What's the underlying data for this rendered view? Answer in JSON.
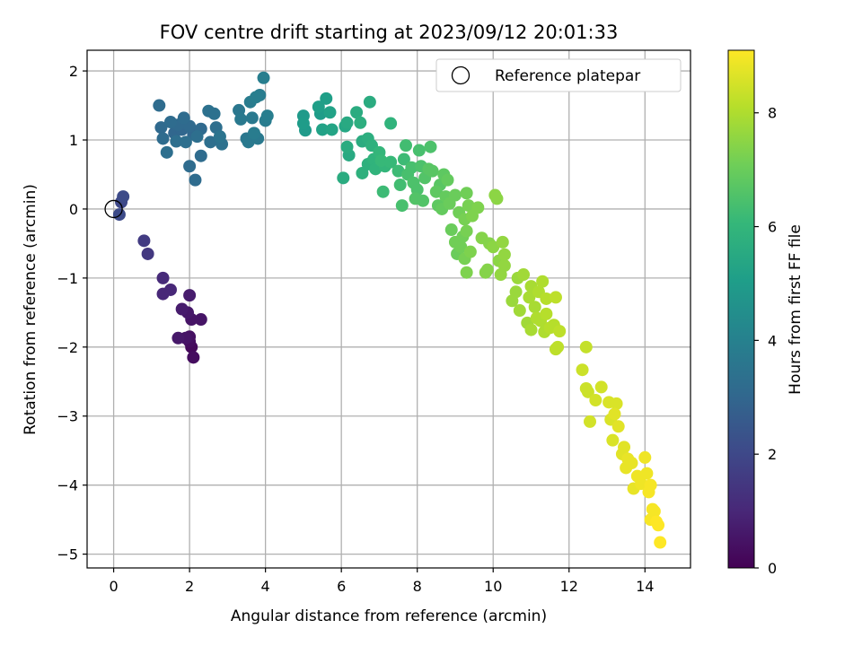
{
  "chart_data": {
    "type": "scatter",
    "title": "FOV centre drift starting at 2023/09/12 20:01:33",
    "xlabel": "Angular distance from reference (arcmin)",
    "ylabel": "Rotation from reference (arcmin)",
    "xlim": [
      -0.7,
      15.2
    ],
    "ylim": [
      -5.2,
      2.3
    ],
    "xticks": [
      0,
      2,
      4,
      6,
      8,
      10,
      12,
      14
    ],
    "yticks": [
      -5,
      -4,
      -3,
      -2,
      -1,
      0,
      1,
      2
    ],
    "xtick_labels": [
      "0",
      "2",
      "4",
      "6",
      "8",
      "10",
      "12",
      "14"
    ],
    "ytick_labels": [
      "−5",
      "−4",
      "−3",
      "−2",
      "−1",
      "0",
      "1",
      "2"
    ],
    "grid": true,
    "legend": {
      "entry": "Reference platepar",
      "position": "top-right",
      "marker": "open-circle"
    },
    "reference_point": {
      "x": 0,
      "y": 0
    },
    "colorbar": {
      "label": "Hours from first FF file",
      "colormap": "viridis",
      "range": [
        0,
        9.1
      ],
      "ticks": [
        0,
        2,
        4,
        6,
        8
      ],
      "tick_labels": [
        "0",
        "2",
        "4",
        "6",
        "8"
      ]
    },
    "colormap_stops": [
      "#440154",
      "#482878",
      "#3e4989",
      "#31688e",
      "#26828e",
      "#1f9e89",
      "#35b779",
      "#6ece58",
      "#b5de2b",
      "#fde725"
    ],
    "points": [
      [
        0.25,
        0.18,
        2.1
      ],
      [
        0.2,
        0.1,
        2.0
      ],
      [
        0.15,
        -0.08,
        2.1
      ],
      [
        0.8,
        -0.46,
        1.6
      ],
      [
        0.9,
        -0.65,
        1.5
      ],
      [
        1.3,
        -1.0,
        1.1
      ],
      [
        1.3,
        -1.23,
        1.0
      ],
      [
        1.5,
        -1.17,
        1.0
      ],
      [
        1.7,
        -1.87,
        0.6
      ],
      [
        1.8,
        -1.45,
        0.7
      ],
      [
        1.9,
        -1.87,
        0.5
      ],
      [
        1.95,
        -1.5,
        0.6
      ],
      [
        2.0,
        -1.25,
        0.7
      ],
      [
        2.0,
        -1.85,
        0.4
      ],
      [
        2.05,
        -1.6,
        0.5
      ],
      [
        2.0,
        -1.92,
        0.3
      ],
      [
        2.05,
        -2.0,
        0.2
      ],
      [
        2.1,
        -2.15,
        0.3
      ],
      [
        2.3,
        -1.6,
        0.5
      ],
      [
        1.2,
        1.5,
        3.2
      ],
      [
        1.25,
        1.18,
        3.1
      ],
      [
        1.3,
        1.02,
        3.2
      ],
      [
        1.4,
        0.82,
        3.3
      ],
      [
        1.5,
        1.26,
        3.2
      ],
      [
        1.6,
        1.1,
        3.0
      ],
      [
        1.65,
        0.98,
        3.3
      ],
      [
        1.7,
        1.22,
        3.1
      ],
      [
        1.8,
        1.15,
        3.0
      ],
      [
        1.85,
        1.32,
        3.2
      ],
      [
        1.9,
        0.97,
        3.3
      ],
      [
        2.0,
        1.2,
        3.1
      ],
      [
        2.0,
        0.62,
        3.2
      ],
      [
        2.1,
        1.08,
        3.0
      ],
      [
        2.15,
        0.42,
        3.2
      ],
      [
        2.2,
        1.05,
        3.3
      ],
      [
        2.3,
        1.16,
        3.1
      ],
      [
        2.3,
        0.77,
        3.2
      ],
      [
        2.5,
        1.42,
        3.4
      ],
      [
        2.55,
        0.97,
        3.3
      ],
      [
        2.65,
        1.38,
        3.4
      ],
      [
        2.7,
        1.18,
        3.3
      ],
      [
        2.8,
        1.05,
        3.5
      ],
      [
        2.85,
        0.94,
        3.4
      ],
      [
        3.3,
        1.43,
        3.6
      ],
      [
        3.35,
        1.3,
        3.7
      ],
      [
        3.5,
        1.02,
        3.6
      ],
      [
        3.55,
        0.97,
        3.7
      ],
      [
        3.6,
        1.55,
        3.8
      ],
      [
        3.65,
        1.32,
        3.7
      ],
      [
        3.7,
        1.1,
        3.8
      ],
      [
        3.75,
        1.62,
        3.9
      ],
      [
        3.8,
        1.02,
        3.7
      ],
      [
        3.85,
        1.65,
        3.8
      ],
      [
        3.95,
        1.9,
        3.9
      ],
      [
        4.0,
        1.28,
        3.8
      ],
      [
        4.05,
        1.35,
        3.9
      ],
      [
        5.0,
        1.35,
        4.9
      ],
      [
        5.0,
        1.24,
        5.0
      ],
      [
        5.05,
        1.14,
        4.9
      ],
      [
        5.4,
        1.48,
        5.1
      ],
      [
        5.45,
        1.38,
        5.0
      ],
      [
        5.5,
        1.15,
        5.2
      ],
      [
        5.6,
        1.6,
        5.1
      ],
      [
        5.7,
        1.4,
        5.2
      ],
      [
        5.75,
        1.15,
        5.3
      ],
      [
        6.05,
        0.45,
        5.6
      ],
      [
        6.1,
        1.2,
        5.4
      ],
      [
        6.15,
        1.25,
        5.5
      ],
      [
        6.15,
        0.9,
        5.6
      ],
      [
        6.2,
        0.78,
        5.5
      ],
      [
        6.4,
        1.4,
        5.6
      ],
      [
        6.5,
        1.25,
        5.7
      ],
      [
        6.55,
        0.98,
        5.6
      ],
      [
        6.55,
        0.52,
        5.8
      ],
      [
        6.7,
        1.02,
        5.7
      ],
      [
        6.7,
        0.65,
        5.8
      ],
      [
        6.75,
        1.55,
        5.6
      ],
      [
        6.8,
        0.92,
        5.8
      ],
      [
        6.85,
        0.72,
        5.9
      ],
      [
        6.9,
        0.58,
        5.9
      ],
      [
        7.0,
        0.82,
        6.0
      ],
      [
        7.05,
        0.7,
        6.1
      ],
      [
        7.1,
        0.25,
        6.2
      ],
      [
        7.15,
        0.62,
        6.0
      ],
      [
        7.3,
        1.24,
        5.9
      ],
      [
        7.3,
        0.68,
        6.1
      ],
      [
        7.5,
        0.55,
        6.2
      ],
      [
        7.55,
        0.35,
        6.3
      ],
      [
        7.6,
        0.05,
        6.4
      ],
      [
        7.65,
        0.72,
        6.2
      ],
      [
        7.7,
        0.92,
        6.3
      ],
      [
        7.75,
        0.5,
        6.4
      ],
      [
        7.85,
        0.6,
        6.4
      ],
      [
        7.9,
        0.38,
        6.5
      ],
      [
        7.95,
        0.15,
        6.6
      ],
      [
        8.0,
        0.28,
        6.5
      ],
      [
        8.05,
        0.85,
        6.4
      ],
      [
        8.1,
        0.62,
        6.5
      ],
      [
        8.15,
        0.12,
        6.6
      ],
      [
        8.2,
        0.45,
        6.6
      ],
      [
        8.3,
        0.58,
        6.7
      ],
      [
        8.35,
        0.9,
        6.5
      ],
      [
        8.4,
        0.55,
        6.7
      ],
      [
        8.5,
        0.25,
        6.8
      ],
      [
        8.55,
        0.05,
        6.8
      ],
      [
        8.6,
        0.35,
        6.7
      ],
      [
        8.65,
        0.0,
        6.9
      ],
      [
        8.7,
        0.5,
        6.8
      ],
      [
        8.75,
        0.18,
        6.9
      ],
      [
        8.8,
        0.42,
        6.9
      ],
      [
        8.85,
        0.08,
        7.0
      ],
      [
        8.9,
        -0.3,
        7.0
      ],
      [
        9.0,
        0.2,
        7.0
      ],
      [
        9.0,
        -0.48,
        7.1
      ],
      [
        9.05,
        -0.65,
        7.0
      ],
      [
        9.1,
        -0.05,
        7.1
      ],
      [
        9.15,
        -0.55,
        7.1
      ],
      [
        9.2,
        -0.4,
        7.1
      ],
      [
        9.25,
        -0.15,
        7.2
      ],
      [
        9.25,
        -0.72,
        7.2
      ],
      [
        9.3,
        0.23,
        7.1
      ],
      [
        9.3,
        -0.32,
        7.2
      ],
      [
        9.3,
        -0.92,
        7.3
      ],
      [
        9.35,
        0.05,
        7.2
      ],
      [
        9.4,
        -0.62,
        7.3
      ],
      [
        9.45,
        -0.1,
        7.3
      ],
      [
        9.6,
        0.02,
        7.3
      ],
      [
        9.7,
        -0.42,
        7.4
      ],
      [
        9.8,
        -0.92,
        7.4
      ],
      [
        9.85,
        -0.88,
        7.4
      ],
      [
        9.9,
        -0.5,
        7.4
      ],
      [
        10.0,
        -0.55,
        7.5
      ],
      [
        10.05,
        0.2,
        7.5
      ],
      [
        10.1,
        0.15,
        7.5
      ],
      [
        10.15,
        -0.75,
        7.5
      ],
      [
        10.2,
        -0.95,
        7.6
      ],
      [
        10.25,
        -0.48,
        7.6
      ],
      [
        10.3,
        -0.82,
        7.6
      ],
      [
        10.3,
        -0.66,
        7.6
      ],
      [
        10.5,
        -1.33,
        7.7
      ],
      [
        10.6,
        -1.2,
        7.7
      ],
      [
        10.65,
        -1.0,
        7.7
      ],
      [
        10.7,
        -1.47,
        7.8
      ],
      [
        10.8,
        -0.95,
        7.8
      ],
      [
        10.9,
        -1.65,
        7.8
      ],
      [
        10.95,
        -1.28,
        7.9
      ],
      [
        11.0,
        -1.12,
        7.9
      ],
      [
        11.0,
        -1.75,
        7.9
      ],
      [
        11.1,
        -1.42,
        7.9
      ],
      [
        11.15,
        -1.58,
        8.0
      ],
      [
        11.2,
        -1.2,
        8.0
      ],
      [
        11.25,
        -1.62,
        8.0
      ],
      [
        11.3,
        -1.05,
        8.0
      ],
      [
        11.35,
        -1.78,
        8.0
      ],
      [
        11.4,
        -1.3,
        8.1
      ],
      [
        11.4,
        -1.52,
        8.1
      ],
      [
        11.5,
        -1.72,
        8.1
      ],
      [
        11.6,
        -1.68,
        8.1
      ],
      [
        11.65,
        -1.28,
        8.2
      ],
      [
        11.65,
        -2.03,
        8.2
      ],
      [
        11.7,
        -2.0,
        8.2
      ],
      [
        11.75,
        -1.77,
        8.2
      ],
      [
        12.35,
        -2.33,
        8.4
      ],
      [
        12.45,
        -2.0,
        8.3
      ],
      [
        12.45,
        -2.6,
        8.4
      ],
      [
        12.5,
        -2.65,
        8.4
      ],
      [
        12.55,
        -3.08,
        8.5
      ],
      [
        12.7,
        -2.77,
        8.5
      ],
      [
        12.85,
        -2.58,
        8.5
      ],
      [
        13.05,
        -2.8,
        8.6
      ],
      [
        13.1,
        -3.05,
        8.6
      ],
      [
        13.15,
        -3.35,
        8.6
      ],
      [
        13.2,
        -2.97,
        8.7
      ],
      [
        13.25,
        -2.82,
        8.6
      ],
      [
        13.3,
        -3.15,
        8.7
      ],
      [
        13.4,
        -3.55,
        8.7
      ],
      [
        13.45,
        -3.45,
        8.7
      ],
      [
        13.5,
        -3.75,
        8.8
      ],
      [
        13.55,
        -3.62,
        8.8
      ],
      [
        13.65,
        -3.68,
        8.8
      ],
      [
        13.7,
        -4.05,
        8.8
      ],
      [
        13.8,
        -3.87,
        8.9
      ],
      [
        13.9,
        -3.98,
        8.9
      ],
      [
        14.0,
        -3.6,
        8.9
      ],
      [
        14.05,
        -3.83,
        8.9
      ],
      [
        14.1,
        -4.1,
        9.0
      ],
      [
        14.15,
        -4.0,
        9.0
      ],
      [
        14.15,
        -4.5,
        9.0
      ],
      [
        14.2,
        -4.35,
        9.0
      ],
      [
        14.25,
        -4.38,
        9.0
      ],
      [
        14.3,
        -4.53,
        9.1
      ],
      [
        14.35,
        -4.58,
        9.1
      ],
      [
        14.4,
        -4.83,
        9.1
      ]
    ]
  }
}
